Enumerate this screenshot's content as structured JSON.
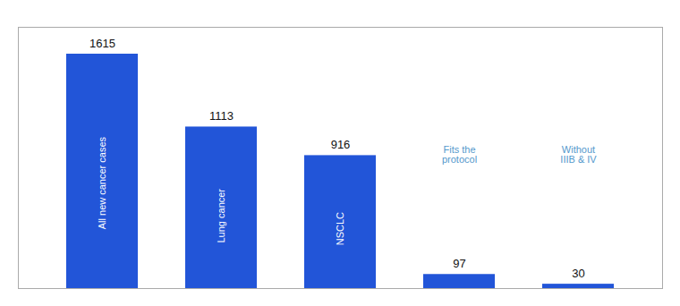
{
  "chart_data": {
    "type": "bar",
    "categories": [
      "All new cancer cases",
      "Lung cancer",
      "NSCLC",
      "Fits the\nprotocol",
      "Without\nIIIB & IV"
    ],
    "values": [
      1615,
      1113,
      916,
      97,
      30
    ],
    "color": "#2255d8",
    "ylim": [
      0,
      1800
    ],
    "grid": false,
    "data_labels": true,
    "tick_labels": false
  }
}
